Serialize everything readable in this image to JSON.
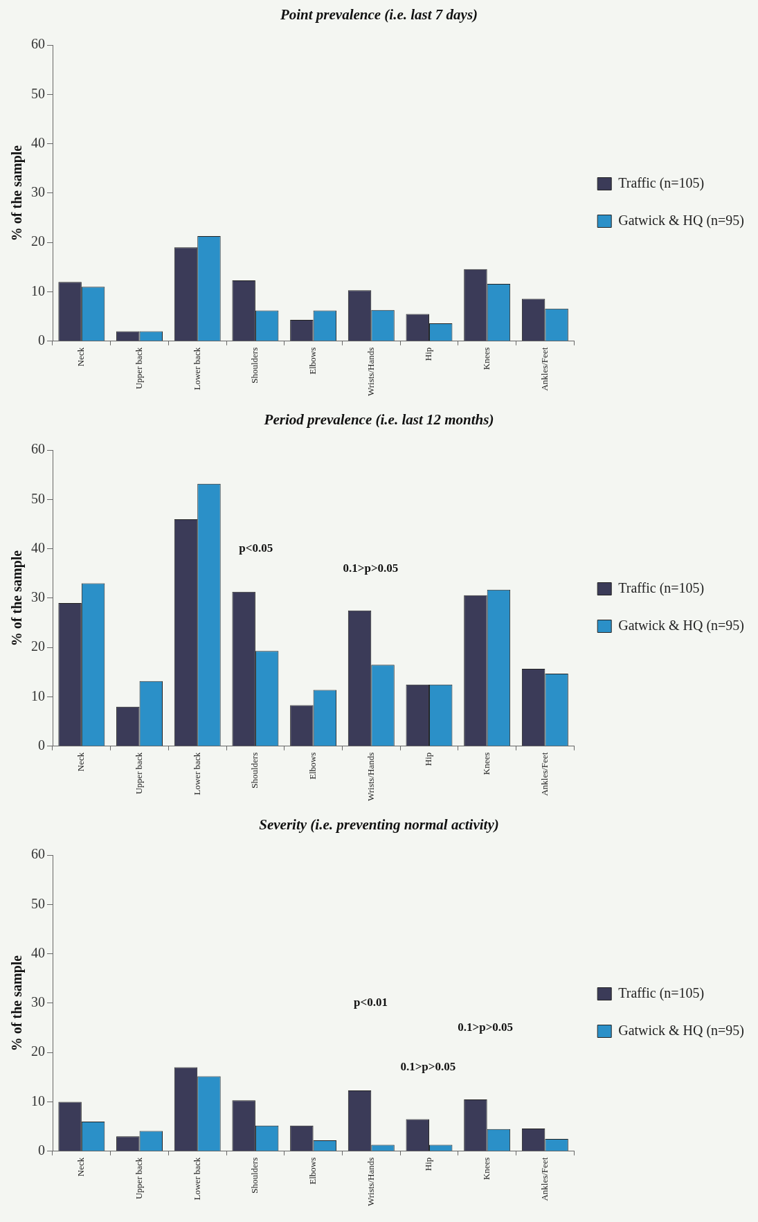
{
  "chart_data": [
    {
      "type": "bar",
      "title": "Point prevalence (i.e. last 7 days)",
      "ylabel": "% of the sample",
      "categories": [
        "Neck",
        "Upper back",
        "Lower back",
        "Shoulders",
        "Elbows",
        "Wrists/Hands",
        "Hip",
        "Knees",
        "Ankles/Feet"
      ],
      "series": [
        {
          "name": "Traffic (n=105)",
          "color": "#3b3b58",
          "values": [
            12,
            2,
            19,
            12.3,
            4.3,
            10.3,
            5.5,
            14.6,
            8.6
          ]
        },
        {
          "name": "Gatwick & HQ (n=95)",
          "color": "#2b90c8",
          "values": [
            11,
            2,
            21.3,
            6.2,
            6.2,
            6.3,
            3.6,
            11.6,
            6.6
          ]
        }
      ],
      "ylim": [
        0,
        60
      ],
      "yticks": [
        0,
        10,
        20,
        30,
        40,
        50,
        60
      ],
      "legend": "right"
    },
    {
      "type": "bar",
      "title": "Period prevalence (i.e. last 12 months)",
      "ylabel": "% of the sample",
      "categories": [
        "Neck",
        "Upper back",
        "Lower back",
        "Shoulders",
        "Elbows",
        "Wrists/Hands",
        "Hip",
        "Knees",
        "Ankles/Feet"
      ],
      "series": [
        {
          "name": "Traffic (n=105)",
          "color": "#3b3b58",
          "values": [
            29,
            8,
            46,
            31.3,
            8.3,
            27.5,
            12.5,
            30.6,
            15.7
          ]
        },
        {
          "name": "Gatwick & HQ (n=95)",
          "color": "#2b90c8",
          "values": [
            33,
            13.2,
            53.2,
            19.3,
            11.4,
            16.5,
            12.5,
            31.7,
            14.7
          ]
        }
      ],
      "ylim": [
        0,
        60
      ],
      "yticks": [
        0,
        10,
        20,
        30,
        40,
        50,
        60
      ],
      "legend": "right",
      "annotations": [
        "p<0.05",
        "0.1>p>0.05"
      ]
    },
    {
      "type": "bar",
      "title": "Severity (i.e. preventing normal activity)",
      "ylabel": "% of the sample",
      "categories": [
        "Neck",
        "Upper back",
        "Lower back",
        "Shoulders",
        "Elbows",
        "Wrists/Hands",
        "Hip",
        "Knees",
        "Ankles/Feet"
      ],
      "series": [
        {
          "name": "Traffic (n=105)",
          "color": "#3b3b58",
          "values": [
            10,
            3,
            17,
            10.3,
            5.2,
            12.3,
            6.5,
            10.5,
            4.6
          ]
        },
        {
          "name": "Gatwick & HQ (n=95)",
          "color": "#2b90c8",
          "values": [
            6,
            4.1,
            15.2,
            5.2,
            2.2,
            1.3,
            1.3,
            4.5,
            2.5
          ]
        }
      ],
      "ylim": [
        0,
        60
      ],
      "yticks": [
        0,
        10,
        20,
        30,
        40,
        50,
        60
      ],
      "legend": "right",
      "annotations": [
        "p<0.01",
        "0.1>p>0.05",
        "0.1>p>0.05"
      ]
    }
  ]
}
